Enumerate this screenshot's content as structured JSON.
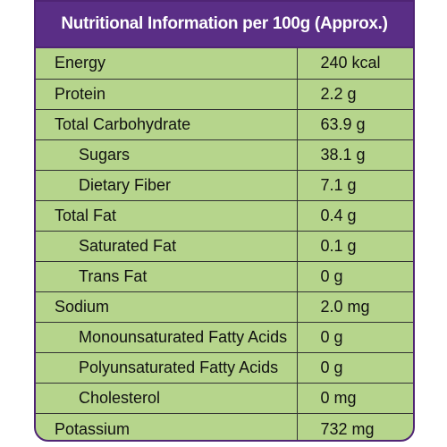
{
  "header": {
    "title": "Nutritional Information per 100g (Approx.)"
  },
  "rows": [
    {
      "name": "Energy",
      "value": "240 kcal"
    },
    {
      "name": "Protein",
      "value": "2.2 g"
    },
    {
      "name": "Total Carbohydrate",
      "value": "63.9 g"
    },
    {
      "name": "Sugars",
      "value": "38.1 g"
    },
    {
      "name": "Dietary Fiber",
      "value": "7.1 g"
    },
    {
      "name": "Total Fat",
      "value": "0.4 g"
    },
    {
      "name": "Saturated Fat",
      "value": "0.1 g"
    },
    {
      "name": "Trans Fat",
      "value": "0 g"
    },
    {
      "name": "Sodium",
      "value": "2.0 mg"
    },
    {
      "name": "Monounsaturated Fatty Acids",
      "value": "0 g"
    },
    {
      "name": "Polyunsaturated Fatty Acids",
      "value": "0 g"
    },
    {
      "name": "Cholesterol",
      "value": "0 mg"
    },
    {
      "name": "Potassium",
      "value": "732 mg"
    }
  ],
  "colors": {
    "header_background": "#5a2e86",
    "table_background": "#b6d58c",
    "header_text": "#ffffff"
  }
}
